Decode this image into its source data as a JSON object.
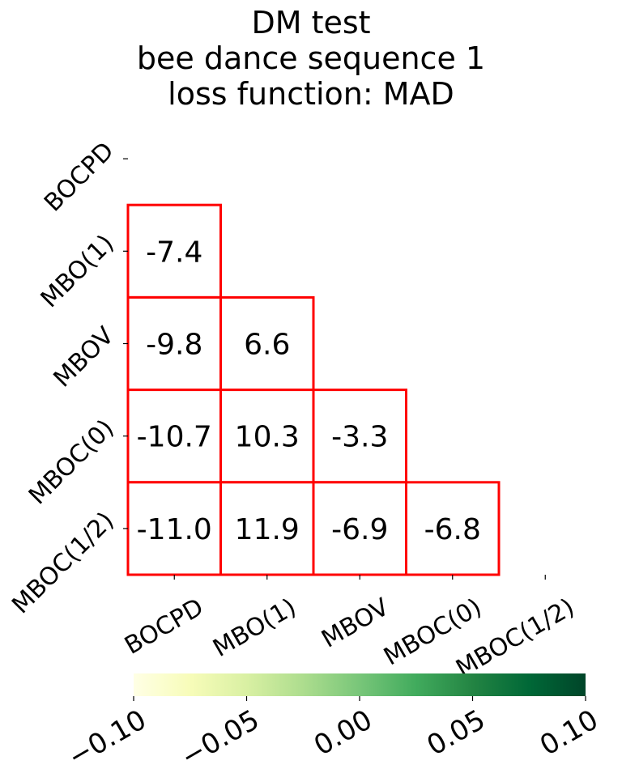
{
  "chart_data": {
    "type": "heatmap",
    "title_lines": [
      "DM test",
      "bee dance sequence 1",
      "loss function: MAD"
    ],
    "row_labels": [
      "BOCPD",
      "MBO(1)",
      "MBOV",
      "MBOC(0)",
      "MBOC(1/2)"
    ],
    "col_labels": [
      "BOCPD",
      "MBO(1)",
      "MBOV",
      "MBOC(0)",
      "MBOC(1/2)"
    ],
    "cells": [
      {
        "row": 1,
        "col": 0,
        "label": "-7.4",
        "value": -7.4
      },
      {
        "row": 2,
        "col": 0,
        "label": "-9.8",
        "value": -9.8
      },
      {
        "row": 2,
        "col": 1,
        "label": "6.6",
        "value": 6.6
      },
      {
        "row": 3,
        "col": 0,
        "label": "-10.7",
        "value": -10.7
      },
      {
        "row": 3,
        "col": 1,
        "label": "10.3",
        "value": 10.3
      },
      {
        "row": 3,
        "col": 2,
        "label": "-3.3",
        "value": -3.3
      },
      {
        "row": 4,
        "col": 0,
        "label": "-11.0",
        "value": -11.0
      },
      {
        "row": 4,
        "col": 1,
        "label": "11.9",
        "value": 11.9
      },
      {
        "row": 4,
        "col": 2,
        "label": "-6.9",
        "value": -6.9
      },
      {
        "row": 4,
        "col": 3,
        "label": "-6.8",
        "value": -6.8
      }
    ],
    "cell_fill": "#ffffff",
    "cell_border_color": "#ff0000",
    "colorbar": {
      "colormap": "YlGn",
      "range": [
        -0.1,
        0.1
      ],
      "tick_labels": [
        "−0.10",
        "−0.05",
        "0.00",
        "0.05",
        "0.10"
      ],
      "tick_values": [
        -0.1,
        -0.05,
        0.0,
        0.05,
        0.1
      ],
      "orientation": "horizontal",
      "position": "bottom"
    }
  }
}
